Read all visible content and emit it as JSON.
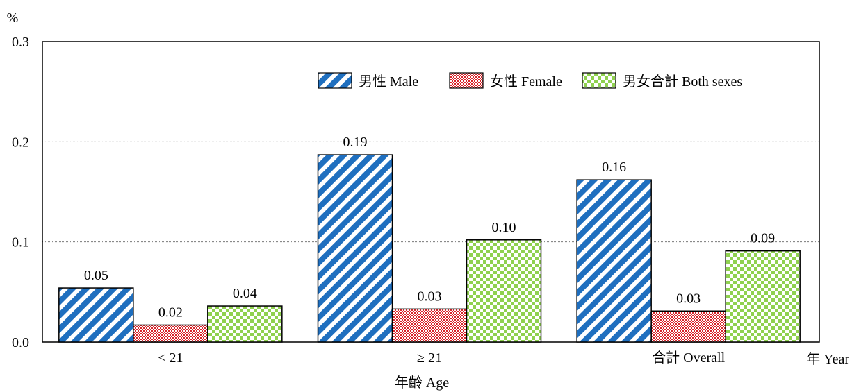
{
  "chart_data": {
    "type": "bar",
    "unit_label": "%",
    "categories": [
      "< 21",
      "≥ 21",
      "合計 Overall"
    ],
    "series": [
      {
        "name": "男性 Male",
        "values": [
          0.05,
          0.19,
          0.16
        ],
        "labels": [
          "0.05",
          "0.19",
          "0.16"
        ],
        "plot_values": [
          0.054,
          0.187,
          0.162
        ],
        "pattern": "diagonal-stripes",
        "color": "#1f6fbf"
      },
      {
        "name": "女性 Female",
        "values": [
          0.02,
          0.03,
          0.03
        ],
        "labels": [
          "0.02",
          "0.03",
          "0.03"
        ],
        "plot_values": [
          0.017,
          0.033,
          0.031
        ],
        "pattern": "small-checker",
        "color": "#d9242a"
      },
      {
        "name": "男女合計 Both sexes",
        "values": [
          0.04,
          0.1,
          0.09
        ],
        "labels": [
          "0.04",
          "0.10",
          "0.09"
        ],
        "plot_values": [
          0.036,
          0.102,
          0.091
        ],
        "pattern": "large-checker",
        "color": "#8fd14f"
      }
    ],
    "xlabel": "年齡 Age",
    "x_corner_label": "年 Year",
    "ylim": [
      0,
      0.3
    ],
    "yticks": [
      "0.0",
      "0.1",
      "0.2",
      "0.3"
    ],
    "grid": true,
    "legend_position": "top-right"
  }
}
